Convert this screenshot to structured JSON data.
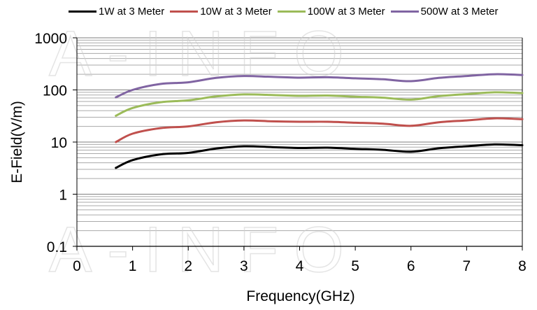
{
  "chart_data": {
    "type": "line",
    "title": "",
    "xlabel": "Frequency(GHz)",
    "ylabel": "E-Field(V/m)",
    "xlim": [
      0,
      8
    ],
    "ylim": [
      0.1,
      1000
    ],
    "yscale": "log",
    "grid": true,
    "legend_position": "top",
    "x_ticks": [
      "0",
      "1",
      "2",
      "3",
      "4",
      "5",
      "6",
      "7",
      "8"
    ],
    "y_ticks": [
      "0.1",
      "1",
      "10",
      "100",
      "1000"
    ],
    "watermark": "A-INFO",
    "x": [
      0.7,
      1.0,
      1.5,
      2.0,
      2.5,
      3.0,
      3.5,
      4.0,
      4.5,
      5.0,
      5.5,
      6.0,
      6.5,
      7.0,
      7.5,
      8.0
    ],
    "series": [
      {
        "name": "1W at 3 Meter",
        "color": "#000000",
        "values": [
          3.2,
          4.5,
          5.8,
          6.2,
          7.5,
          8.3,
          8.0,
          7.7,
          7.8,
          7.4,
          7.1,
          6.5,
          7.6,
          8.3,
          9.0,
          8.7
        ]
      },
      {
        "name": "10W at 3 Meter",
        "color": "#c0504d",
        "values": [
          10,
          14.5,
          18.5,
          20,
          24,
          26,
          25,
          24.5,
          24.5,
          23.5,
          22.5,
          20.5,
          24,
          26,
          28.5,
          27.5
        ]
      },
      {
        "name": "100W at 3 Meter",
        "color": "#9bbb59",
        "values": [
          32,
          45,
          58,
          63,
          75,
          82,
          80,
          77,
          78,
          74,
          71,
          65,
          76,
          83,
          90,
          87
        ]
      },
      {
        "name": "500W at 3 Meter",
        "color": "#8064a2",
        "values": [
          72,
          100,
          130,
          140,
          170,
          185,
          178,
          172,
          175,
          167,
          160,
          147,
          170,
          185,
          200,
          193
        ]
      }
    ]
  }
}
